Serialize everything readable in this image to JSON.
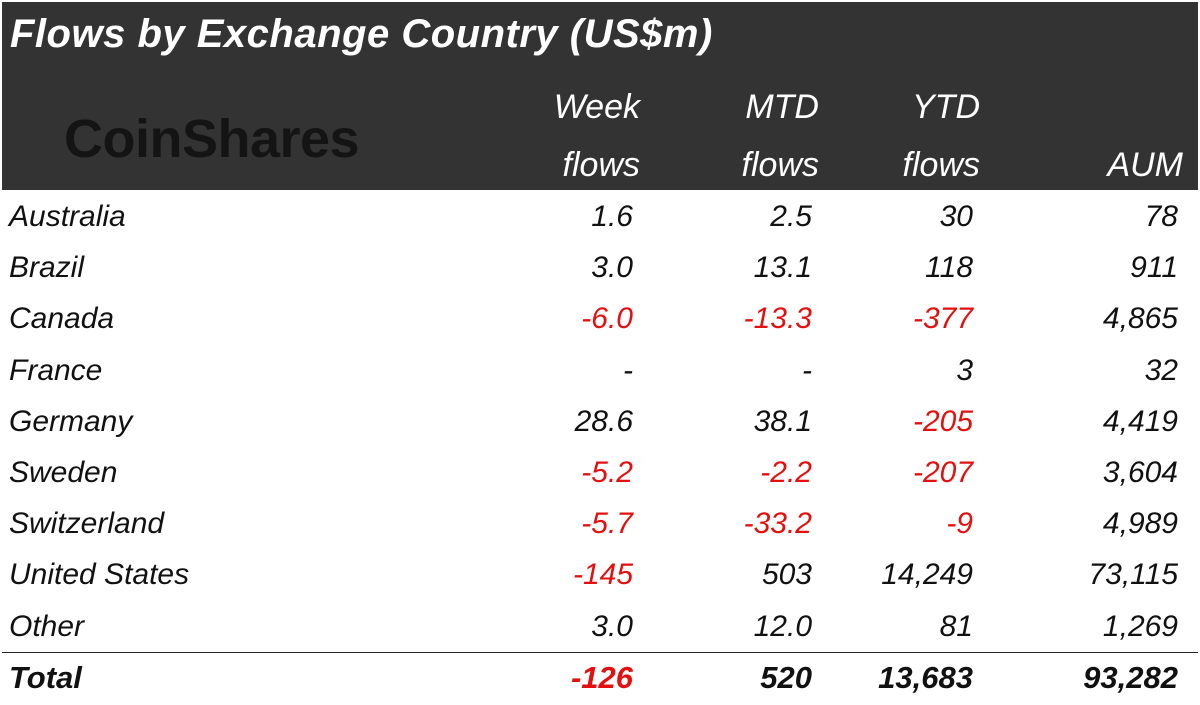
{
  "title": "Flows by Exchange Country (US$m)",
  "logo_text": "CoinShares",
  "headers": {
    "week": [
      "Week",
      "flows"
    ],
    "mtd": [
      "MTD",
      "flows"
    ],
    "ytd": [
      "YTD",
      "flows"
    ],
    "aum": [
      "",
      "AUM"
    ]
  },
  "colors": {
    "header_bg": "#333333",
    "negative": "#e41010",
    "text": "#111111"
  },
  "chart_data": {
    "type": "table",
    "title": "Flows by Exchange Country (US$m)",
    "columns": [
      "Week flows",
      "MTD flows",
      "YTD flows",
      "AUM"
    ],
    "rows": [
      {
        "country": "Australia",
        "week": "1.6",
        "mtd": "2.5",
        "ytd": "30",
        "aum": "78"
      },
      {
        "country": "Brazil",
        "week": "3.0",
        "mtd": "13.1",
        "ytd": "118",
        "aum": "911"
      },
      {
        "country": "Canada",
        "week": "-6.0",
        "mtd": "-13.3",
        "ytd": "-377",
        "aum": "4,865"
      },
      {
        "country": "France",
        "week": "-",
        "mtd": "-",
        "ytd": "3",
        "aum": "32"
      },
      {
        "country": "Germany",
        "week": "28.6",
        "mtd": "38.1",
        "ytd": "-205",
        "aum": "4,419"
      },
      {
        "country": "Sweden",
        "week": "-5.2",
        "mtd": "-2.2",
        "ytd": "-207",
        "aum": "3,604"
      },
      {
        "country": "Switzerland",
        "week": "-5.7",
        "mtd": "-33.2",
        "ytd": "-9",
        "aum": "4,989"
      },
      {
        "country": "United States",
        "week": "-145",
        "mtd": "503",
        "ytd": "14,249",
        "aum": "73,115"
      },
      {
        "country": "Other",
        "week": "3.0",
        "mtd": "12.0",
        "ytd": "81",
        "aum": "1,269"
      }
    ],
    "total": {
      "country": "Total",
      "week": "-126",
      "mtd": "520",
      "ytd": "13,683",
      "aum": "93,282"
    }
  }
}
